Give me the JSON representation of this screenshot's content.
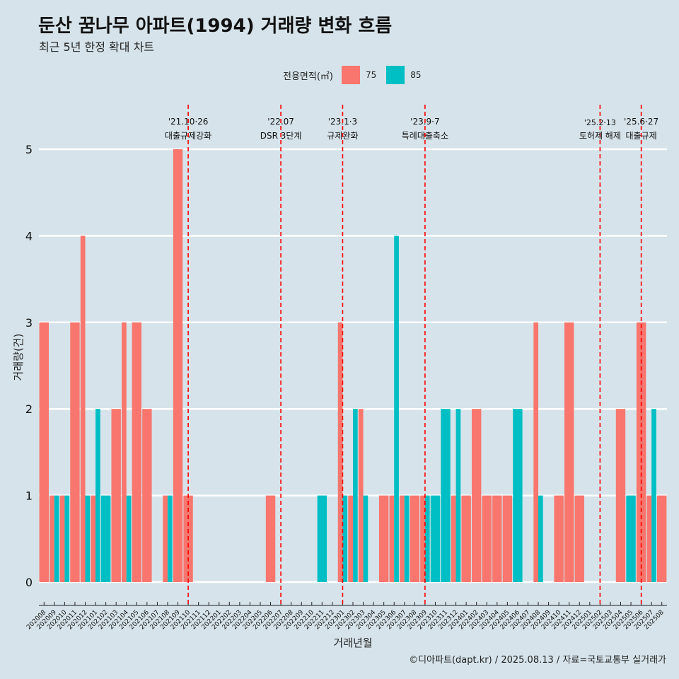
{
  "title": "둔산 꿈나무 아파트(1994) 거래량 변화 흐름",
  "subtitle": "최근 5년 한정 확대 차트",
  "legend": {
    "title": "전용면적(㎡)",
    "items": [
      {
        "label": "75",
        "color": "#f8766d"
      },
      {
        "label": "85",
        "color": "#00bfc4"
      }
    ]
  },
  "caption": "©디아파트(dapt.kr) / 2025.08.13 / 자료=국토교통부 실거래가",
  "chart_data": {
    "type": "bar",
    "xlabel": "거래년월",
    "ylabel": "거래량(건)",
    "ylim": [
      0,
      5
    ],
    "yticks": [
      0,
      1,
      2,
      3,
      4,
      5
    ],
    "grid": true,
    "categories": [
      "202008",
      "202009",
      "202010",
      "202011",
      "202012",
      "202101",
      "202102",
      "202103",
      "202104",
      "202105",
      "202106",
      "202107",
      "202108",
      "202109",
      "202110",
      "202111",
      "202112",
      "202201",
      "202202",
      "202203",
      "202204",
      "202205",
      "202206",
      "202207",
      "202208",
      "202209",
      "202210",
      "202211",
      "202212",
      "202301",
      "202302",
      "202303",
      "202304",
      "202305",
      "202306",
      "202307",
      "202308",
      "202309",
      "202310",
      "202311",
      "202312",
      "202401",
      "202402",
      "202403",
      "202404",
      "202405",
      "202406",
      "202407",
      "202408",
      "202409",
      "202410",
      "202411",
      "202412",
      "202501",
      "202502",
      "202503",
      "202504",
      "202505",
      "202506",
      "202507",
      "202508"
    ],
    "series": [
      {
        "name": "75",
        "color": "#f8766d",
        "values": [
          3,
          1,
          1,
          3,
          4,
          1,
          0,
          2,
          3,
          3,
          2,
          0,
          1,
          5,
          1,
          0,
          0,
          0,
          0,
          0,
          0,
          0,
          1,
          0,
          0,
          0,
          0,
          0,
          0,
          3,
          1,
          2,
          0,
          1,
          1,
          1,
          1,
          1,
          0,
          0,
          1,
          1,
          2,
          1,
          1,
          1,
          0,
          0,
          3,
          0,
          1,
          3,
          1,
          0,
          0,
          0,
          2,
          0,
          3,
          1,
          1
        ]
      },
      {
        "name": "85",
        "color": "#00bfc4",
        "values": [
          0,
          1,
          1,
          0,
          1,
          2,
          1,
          0,
          1,
          0,
          0,
          0,
          1,
          0,
          0,
          0,
          0,
          0,
          0,
          0,
          0,
          0,
          0,
          0,
          0,
          0,
          0,
          1,
          0,
          1,
          2,
          1,
          0,
          0,
          4,
          1,
          0,
          1,
          1,
          2,
          2,
          0,
          0,
          0,
          0,
          0,
          2,
          0,
          1,
          0,
          0,
          0,
          0,
          0,
          0,
          0,
          0,
          1,
          0,
          2,
          0
        ]
      }
    ],
    "annotations": [
      {
        "at": "202110",
        "date": "'21.10·26",
        "label": "대출규제강화"
      },
      {
        "at": "202207",
        "date": "'22.07",
        "label": "DSR 3단계"
      },
      {
        "at": "202301",
        "date": "'23.1·3",
        "label": "규제완화"
      },
      {
        "at": "202309",
        "date": "'23.9·7",
        "label": "특례대출축소"
      },
      {
        "at": "202502",
        "date": "'25.2·13",
        "label": "토허제 해제"
      },
      {
        "at": "202506",
        "date": "'25.6·27",
        "label": "대출규제"
      }
    ],
    "annotation_color": "#ff0000"
  }
}
